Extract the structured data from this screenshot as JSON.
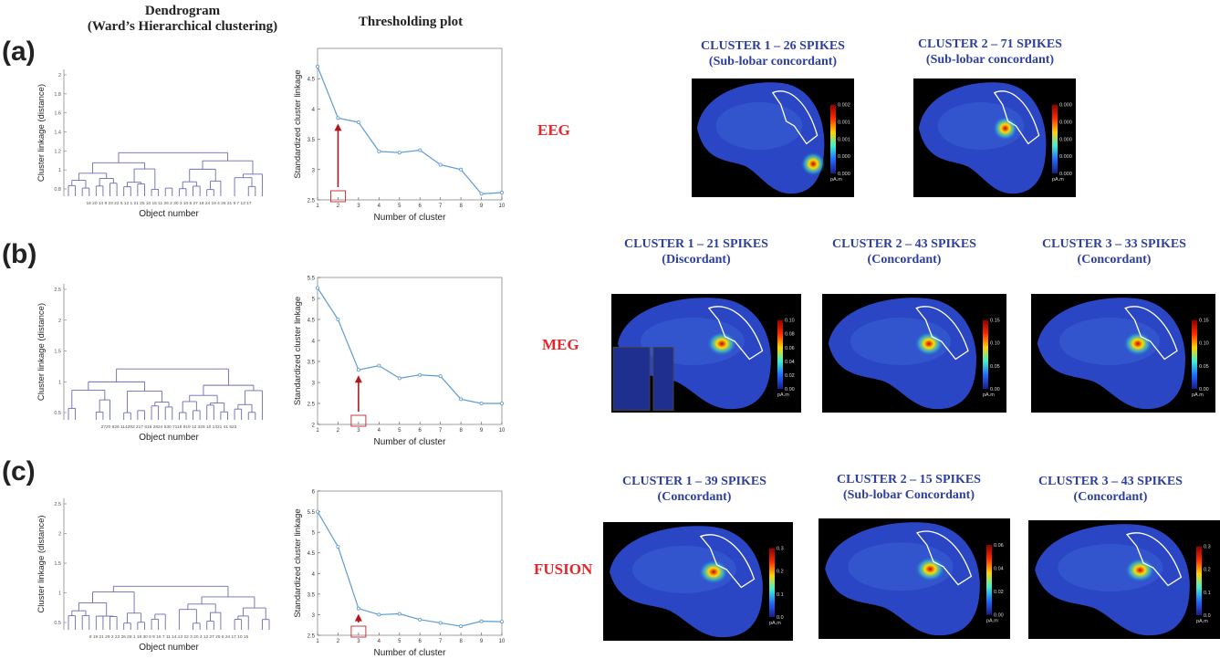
{
  "headers": {
    "dendrogram": "Dendrogram",
    "dendrogram_sub": "(Ward’s Hierarchical clustering)",
    "threshold": "Thresholding plot"
  },
  "rows": [
    {
      "label": "(a)",
      "modality": "EEG",
      "clusters": [
        {
          "title": "CLUSTER 1 – 26 SPIKES",
          "sub": "(Sub-lobar concordant)",
          "ticks": [
            "0.002",
            "0.001",
            "0.001",
            "0.000",
            "0.000"
          ]
        },
        {
          "title": "CLUSTER 2 – 71 SPIKES",
          "sub": "(Sub-lobar concordant)",
          "ticks": [
            "0.000",
            "0.000",
            "0.000",
            "0.000",
            "0.000"
          ]
        }
      ]
    },
    {
      "label": "(b)",
      "modality": "MEG",
      "clusters": [
        {
          "title": "CLUSTER 1 – 21 SPIKES",
          "sub": "(Discordant)",
          "ticks": [
            "0.10",
            "0.08",
            "0.06",
            "0.04",
            "0.02",
            "0.00"
          ]
        },
        {
          "title": "CLUSTER 2 – 43 SPIKES",
          "sub": "(Concordant)",
          "ticks": [
            "0.15",
            "0.10",
            "0.05",
            "0.00"
          ]
        },
        {
          "title": "CLUSTER 3 – 33 SPIKES",
          "sub": "(Concordant)",
          "ticks": [
            "0.15",
            "0.10",
            "0.05",
            "0.00"
          ]
        }
      ]
    },
    {
      "label": "(c)",
      "modality": "FUSION",
      "clusters": [
        {
          "title": "CLUSTER 1 – 39 SPIKES",
          "sub": "(Concordant)",
          "ticks": [
            "0.3",
            "0.2",
            "0.1",
            "0.0"
          ]
        },
        {
          "title": "CLUSTER 2 – 15 SPIKES",
          "sub": "(Sub-lobar Concordant)",
          "ticks": [
            "0.06",
            "0.04",
            "0.02",
            "0.00"
          ]
        },
        {
          "title": "CLUSTER 3 – 43 SPIKES",
          "sub": "(Concordant)",
          "ticks": [
            "0.3",
            "0.2",
            "0.1",
            "0.0"
          ]
        }
      ]
    }
  ],
  "colorbar_unit": "pA.m",
  "chart_data": [
    {
      "type": "line",
      "panel": "(a) thresholding",
      "x": [
        1,
        2,
        3,
        4,
        5,
        6,
        7,
        8,
        9,
        10
      ],
      "values": [
        4.7,
        3.85,
        3.78,
        3.3,
        3.28,
        3.32,
        3.08,
        3.0,
        2.6,
        2.62
      ],
      "ylim": [
        2.5,
        5
      ],
      "yticks": [
        "2.5",
        "3",
        "3.5",
        "4",
        "4.5"
      ],
      "xlabel": "Number of cluster",
      "ylabel": "Standardized cluster linkage",
      "selected": 2,
      "color": "#5b9bd5"
    },
    {
      "type": "line",
      "panel": "(b) thresholding",
      "x": [
        1,
        2,
        3,
        4,
        5,
        6,
        7,
        8,
        9,
        10
      ],
      "values": [
        5.25,
        4.5,
        3.3,
        3.4,
        3.1,
        3.18,
        3.15,
        2.6,
        2.5,
        2.5
      ],
      "ylim": [
        2,
        5.5
      ],
      "yticks": [
        "2",
        "2.5",
        "3",
        "3.5",
        "4",
        "4.5",
        "5",
        "5.5"
      ],
      "xlabel": "Number of cluster",
      "ylabel": "Standardized cluster linkage",
      "selected": 3,
      "color": "#5b9bd5"
    },
    {
      "type": "line",
      "panel": "(c) thresholding",
      "x": [
        1,
        2,
        3,
        4,
        5,
        6,
        7,
        8,
        9,
        10
      ],
      "values": [
        5.5,
        4.65,
        3.15,
        3.0,
        3.02,
        2.88,
        2.8,
        2.72,
        2.84,
        2.83
      ],
      "ylim": [
        2.5,
        6
      ],
      "yticks": [
        "2.5",
        "3",
        "3.5",
        "4",
        "4.5",
        "5",
        "5.5",
        "6"
      ],
      "xlabel": "Number of cluster",
      "ylabel": "Standardized cluster linkage",
      "selected": 3,
      "color": "#5b9bd5"
    },
    {
      "type": "dendrogram",
      "panel": "(a) dendrogram",
      "ylabel": "Cluster linkage (distance)",
      "xlabel": "Object number",
      "yticks": [
        "0.8",
        "1",
        "1.2",
        "1.4",
        "1.6",
        "1.8",
        "2"
      ],
      "leaves": "16 20 14 8 23 22 5 12 1 21 25 10 15 11 26 2 30 3 10 6 27 18 24 19 4 26 21 9 7 13 17"
    },
    {
      "type": "dendrogram",
      "panel": "(b) dendrogram",
      "ylabel": "Cluster linkage (distance)",
      "xlabel": "Object number",
      "yticks": [
        "0.5",
        "1",
        "1.5",
        "2",
        "2.5"
      ],
      "leaves": "2720 826 114292 217 616 2824 530 7118 919 12 325 10 1321 41 523"
    },
    {
      "type": "dendrogram",
      "panel": "(c) dendrogram",
      "ylabel": "Cluster linkage (distance)",
      "xlabel": "Object number",
      "yticks": [
        "0.5",
        "1",
        "1.5",
        "2",
        "2.5"
      ],
      "leaves": "8 19 21 29 2 23 26 28 1 18 30 5 9 16 7 11 14 13 22 3 20 4 12 27 25 6 24 17 10 15"
    }
  ]
}
